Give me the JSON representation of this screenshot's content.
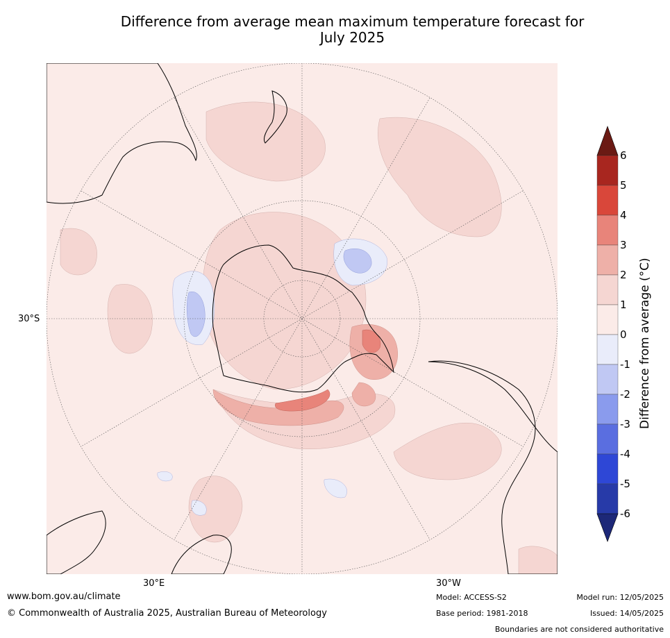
{
  "title": {
    "line1": "Difference from average mean maximum temperature forecast for",
    "line2": "July 2025"
  },
  "map": {
    "type": "south-polar stereographic anomaly map",
    "lat_label": "30°S",
    "lon_labels": [
      "30°E",
      "30°W"
    ]
  },
  "colorbar": {
    "label": "Difference from average (°C)",
    "ticks": [
      "6",
      "5",
      "4",
      "3",
      "2",
      "1",
      "0",
      "-1",
      "-2",
      "-3",
      "-4",
      "-5",
      "-6"
    ],
    "colors": [
      "#6b1a14",
      "#a8261f",
      "#d9473a",
      "#e8847a",
      "#eeb0a8",
      "#f5d6d2",
      "#fbebe8",
      "#e9ecfa",
      "#c0c8f3",
      "#8a9bed",
      "#5a6ee0",
      "#2e47d6",
      "#273aa8",
      "#1d2878"
    ]
  },
  "footer": {
    "website": "www.bom.gov.au/climate",
    "copyright": "© Commonwealth of Australia 2025, Australian Bureau of Meteorology",
    "model": "Model: ACCESS-S2",
    "base_period": "Base period: 1981-2018",
    "model_run": "Model run: 12/05/2025",
    "issued": "Issued: 14/05/2025",
    "boundaries": "Boundaries are not considered authoritative"
  }
}
